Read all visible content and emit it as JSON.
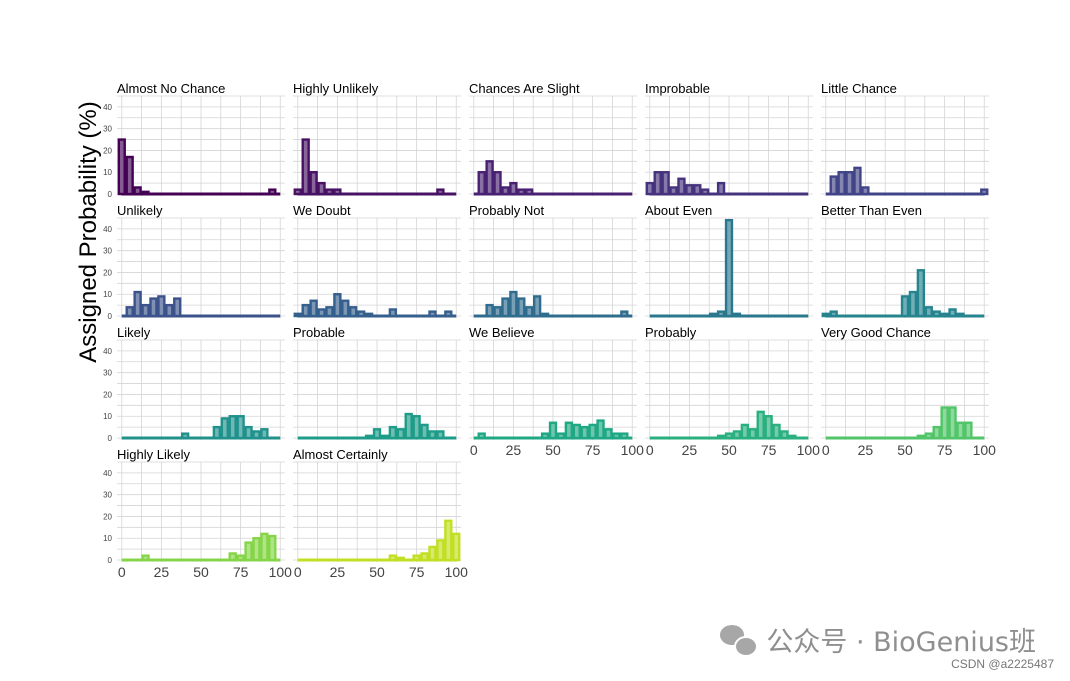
{
  "chart_data": {
    "type": "bar",
    "chart_kind": "faceted histogram (small multiples)",
    "ylabel": "Assigned Probability (%)",
    "x_ticks": [
      0,
      25,
      50,
      75,
      100
    ],
    "y_ticks": [
      0,
      10,
      20,
      30,
      40
    ],
    "xlim": [
      -3,
      103
    ],
    "ylim": [
      0,
      45
    ],
    "bin_width": 5,
    "grid": true,
    "panels": [
      {
        "name": "Almost No Chance",
        "color": "#440154",
        "bins": [
          0,
          5,
          10,
          15,
          95
        ],
        "values": [
          25,
          17,
          3,
          1,
          2
        ]
      },
      {
        "name": "Highly Unlikely",
        "color": "#471164",
        "bins": [
          0,
          5,
          10,
          15,
          20,
          25,
          90
        ],
        "values": [
          2,
          25,
          10,
          5,
          2,
          2,
          2
        ]
      },
      {
        "name": "Chances Are Slight",
        "color": "#482173",
        "bins": [
          5,
          10,
          15,
          20,
          25,
          30,
          35
        ],
        "values": [
          10,
          15,
          10,
          3,
          5,
          2,
          2
        ]
      },
      {
        "name": "Improbable",
        "color": "#46337e",
        "bins": [
          0,
          5,
          10,
          15,
          20,
          25,
          30,
          35,
          45
        ],
        "values": [
          5,
          10,
          10,
          3,
          7,
          4,
          4,
          2,
          5
        ]
      },
      {
        "name": "Little Chance",
        "color": "#414487",
        "bins": [
          5,
          10,
          15,
          20,
          25,
          100
        ],
        "values": [
          8,
          10,
          10,
          12,
          3,
          2
        ]
      },
      {
        "name": "Unlikely",
        "color": "#3b528b",
        "bins": [
          5,
          10,
          15,
          20,
          25,
          30,
          35
        ],
        "values": [
          4,
          11,
          5,
          8,
          9,
          5,
          8
        ]
      },
      {
        "name": "We Doubt",
        "color": "#355f8d",
        "bins": [
          0,
          5,
          10,
          15,
          20,
          25,
          30,
          35,
          40,
          45,
          60,
          85,
          95
        ],
        "values": [
          1,
          5,
          7,
          3,
          4,
          10,
          7,
          4,
          2,
          1,
          3,
          2,
          2
        ]
      },
      {
        "name": "Probably Not",
        "color": "#2f6c8e",
        "bins": [
          10,
          15,
          20,
          25,
          30,
          35,
          40,
          45,
          95
        ],
        "values": [
          5,
          4,
          8,
          11,
          8,
          4,
          9,
          1,
          2
        ]
      },
      {
        "name": "About Even",
        "color": "#2a788e",
        "bins": [
          40,
          45,
          50,
          55
        ],
        "values": [
          1,
          2,
          44,
          1
        ]
      },
      {
        "name": "Better Than Even",
        "color": "#25848e",
        "bins": [
          0,
          5,
          50,
          55,
          60,
          65,
          70,
          75,
          80,
          85
        ],
        "values": [
          1,
          2,
          9,
          11,
          21,
          4,
          2,
          1,
          3,
          1
        ]
      },
      {
        "name": "Likely",
        "color": "#21918c",
        "bins": [
          40,
          60,
          65,
          70,
          75,
          80,
          85,
          90
        ],
        "values": [
          2,
          5,
          9,
          10,
          10,
          5,
          3,
          4
        ]
      },
      {
        "name": "Probable",
        "color": "#1e9c89",
        "bins": [
          45,
          50,
          55,
          60,
          65,
          70,
          75,
          80,
          85,
          90
        ],
        "values": [
          1,
          4,
          1,
          5,
          4,
          11,
          10,
          6,
          3,
          3
        ]
      },
      {
        "name": "We Believe",
        "color": "#20a884",
        "bins": [
          5,
          45,
          50,
          55,
          60,
          65,
          70,
          75,
          80,
          85,
          90,
          95
        ],
        "values": [
          2,
          2,
          7,
          2,
          7,
          6,
          5,
          6,
          8,
          4,
          2,
          2
        ]
      },
      {
        "name": "Probably",
        "color": "#2ab07f",
        "bins": [
          45,
          50,
          55,
          60,
          65,
          70,
          75,
          80,
          85,
          90
        ],
        "values": [
          1,
          2,
          3,
          6,
          4,
          12,
          10,
          6,
          3,
          1
        ]
      },
      {
        "name": "Very Good Chance",
        "color": "#52c569",
        "bins": [
          60,
          65,
          70,
          75,
          80,
          85,
          90
        ],
        "values": [
          1,
          2,
          5,
          14,
          14,
          7,
          7
        ]
      },
      {
        "name": "Highly Likely",
        "color": "#86d549",
        "bins": [
          15,
          70,
          75,
          80,
          85,
          90,
          95
        ],
        "values": [
          2,
          3,
          2,
          8,
          10,
          12,
          11
        ]
      },
      {
        "name": "Almost Certainly",
        "color": "#c2df23",
        "bins": [
          60,
          65,
          75,
          80,
          85,
          90,
          95,
          100
        ],
        "values": [
          2,
          1,
          2,
          3,
          6,
          9,
          18,
          12
        ]
      }
    ]
  },
  "watermark": {
    "text": "公众号 · BioGenius班",
    "icon": "wechat-icon"
  },
  "credit": "CSDN @a2225487"
}
